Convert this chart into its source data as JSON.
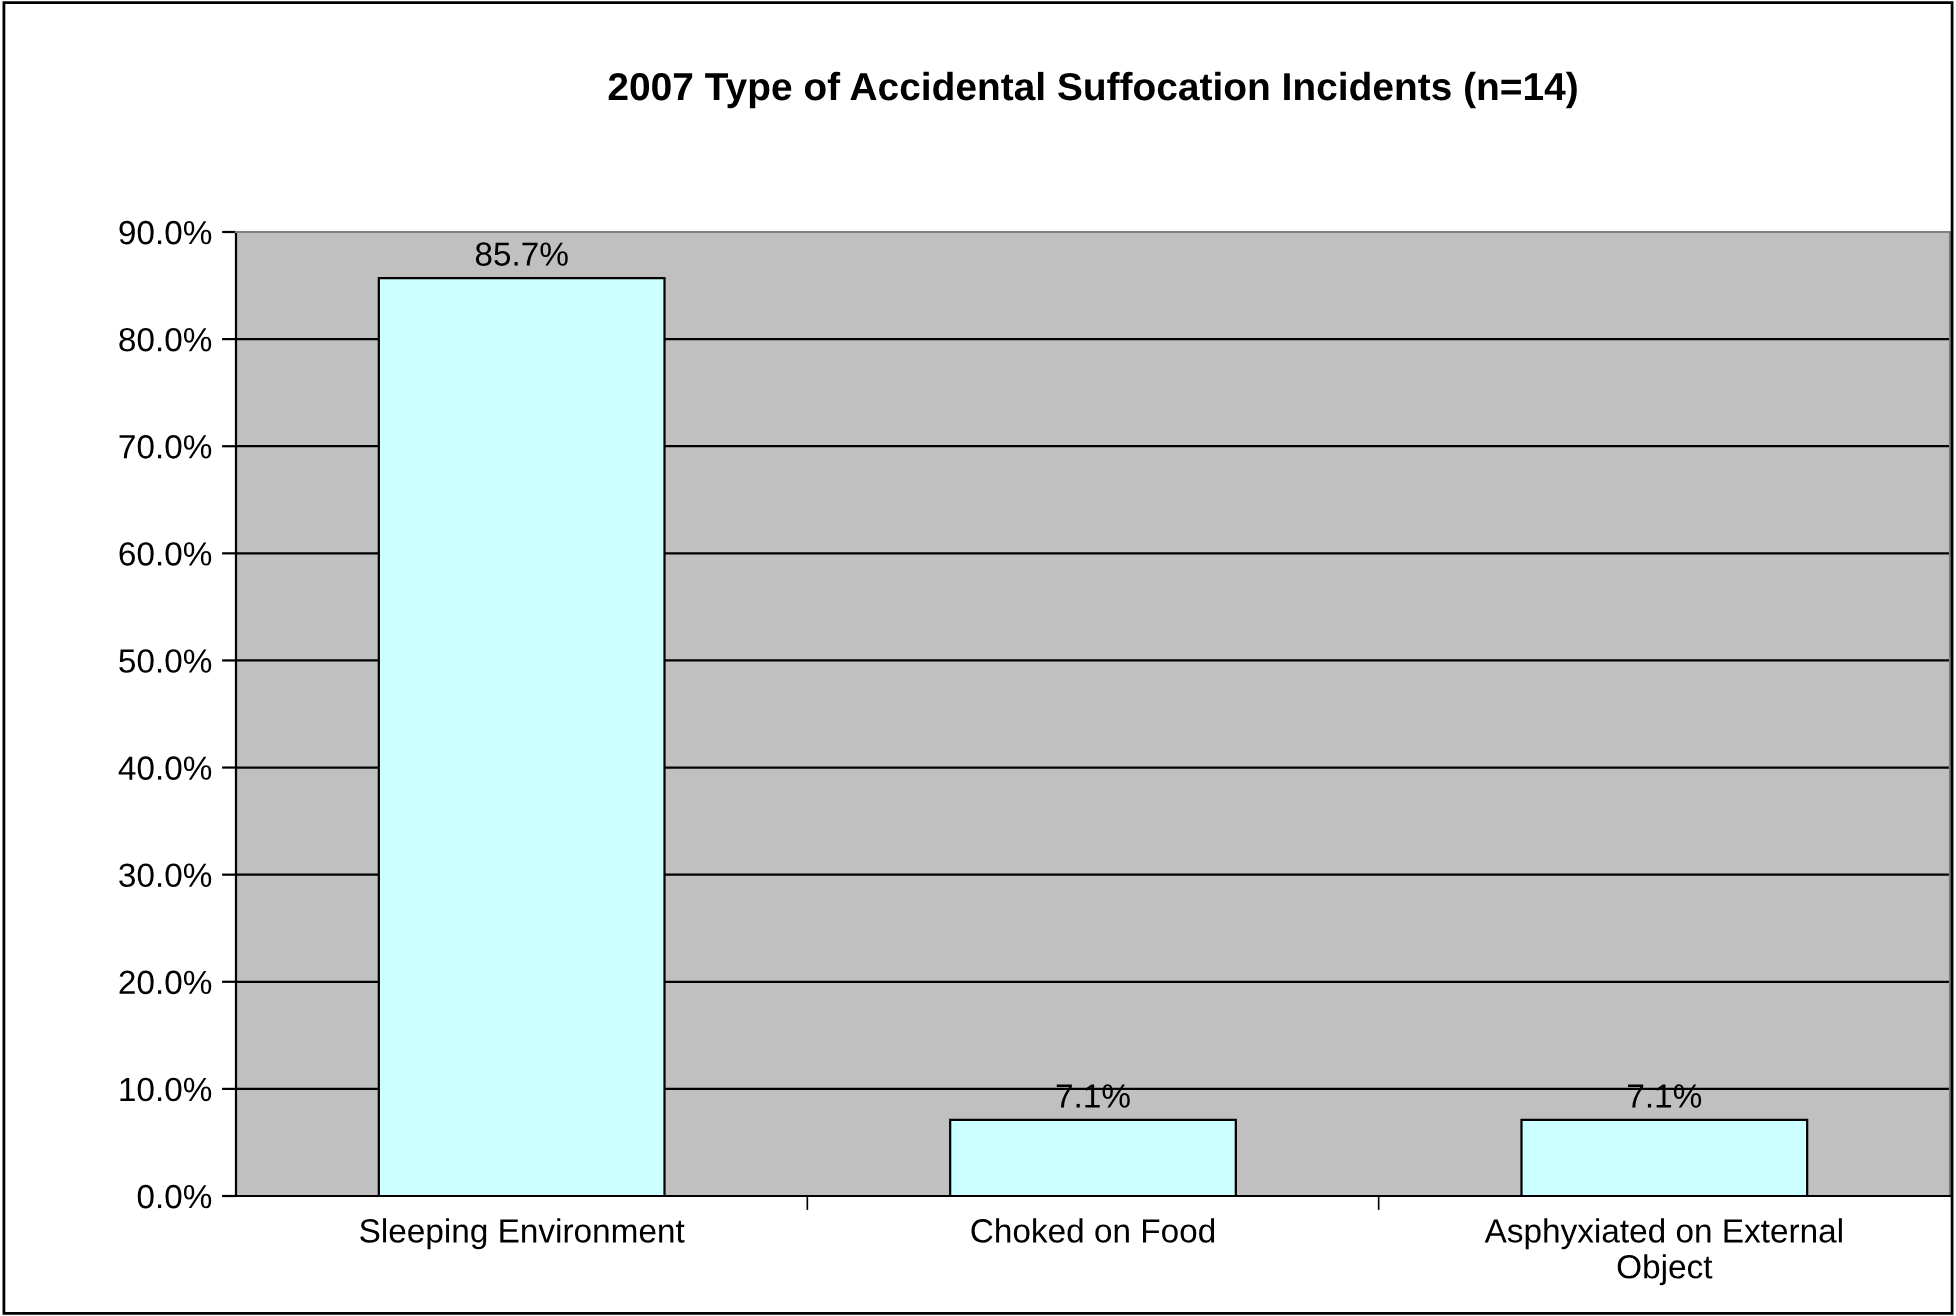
{
  "chart_data": {
    "type": "bar",
    "title": "2007 Type of Accidental Suffocation Incidents (n=14)",
    "categories": [
      "Sleeping Environment",
      "Choked on Food",
      "Asphyxiated on External Object"
    ],
    "values": [
      85.7,
      7.1,
      7.1
    ],
    "color": "#ccffff",
    "value_labels": [
      "85.7%",
      "7.1%",
      "7.1%"
    ],
    "ylim": [
      0,
      90
    ],
    "yticks": [
      {
        "value": 0,
        "label": "0.0%"
      },
      {
        "value": 10,
        "label": "10.0%"
      },
      {
        "value": 20,
        "label": "20.0%"
      },
      {
        "value": 30,
        "label": "30.0%"
      },
      {
        "value": 40,
        "label": "40.0%"
      },
      {
        "value": 50,
        "label": "50.0%"
      },
      {
        "value": 60,
        "label": "60.0%"
      },
      {
        "value": 70,
        "label": "70.0%"
      },
      {
        "value": 80,
        "label": "80.0%"
      },
      {
        "value": 90,
        "label": "90.0%"
      }
    ],
    "grid": "y"
  }
}
